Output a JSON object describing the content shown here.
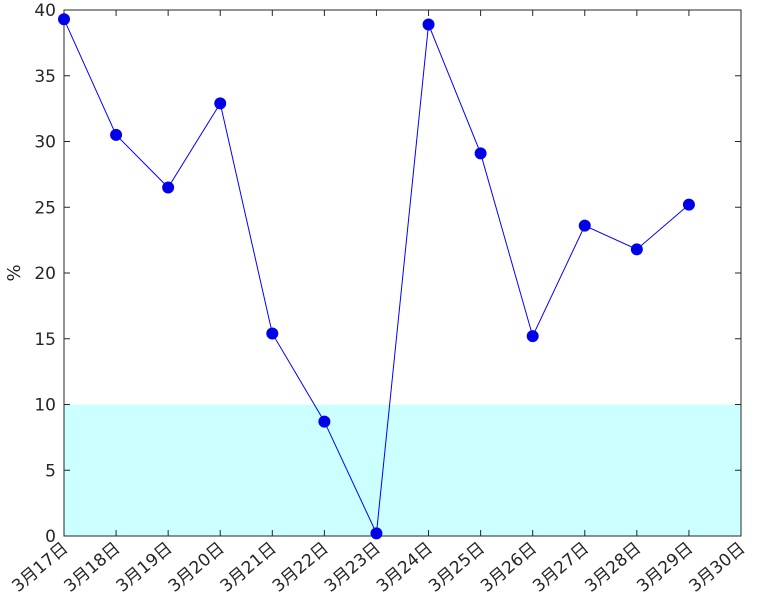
{
  "chart_data": {
    "type": "line",
    "x": [
      "3月17日",
      "3月18日",
      "3月19日",
      "3月20日",
      "3月21日",
      "3月22日",
      "3月23日",
      "3月24日",
      "3月25日",
      "3月26日",
      "3月27日",
      "3月28日",
      "3月29日",
      "3月30日"
    ],
    "series": [
      {
        "values": [
          39.3,
          30.5,
          26.5,
          32.9,
          15.4,
          8.7,
          0.2,
          38.9,
          29.1,
          15.2,
          23.6,
          21.8,
          25.2,
          null
        ]
      }
    ],
    "ylabel": "%",
    "ylim": [
      0,
      40
    ],
    "yticks": [
      0,
      5,
      10,
      15,
      20,
      25,
      30,
      35,
      40
    ],
    "band": {
      "from": 0,
      "to": 10,
      "color": "#ccffff"
    },
    "line_color": "#0000ff",
    "marker_color": "#0000e6",
    "grid": false
  }
}
